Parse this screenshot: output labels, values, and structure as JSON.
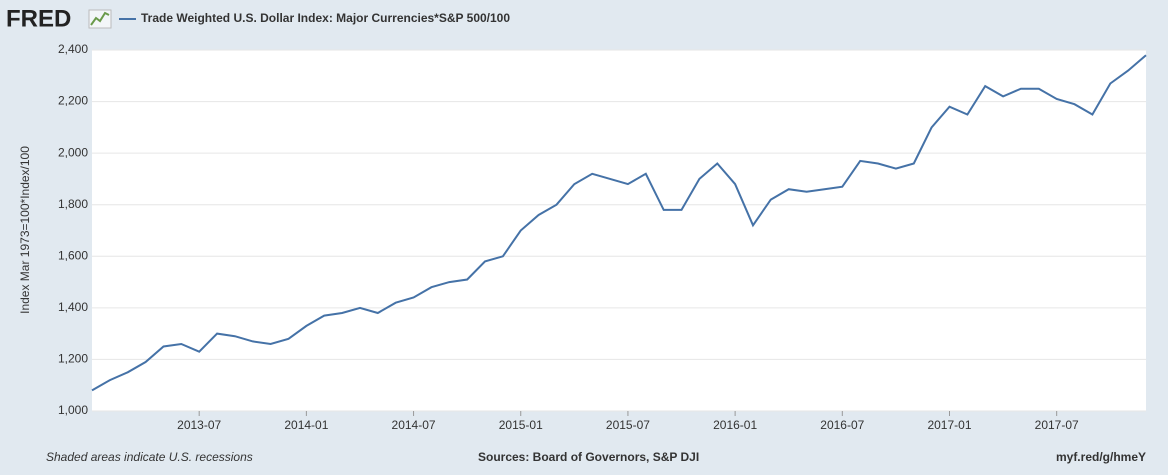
{
  "chart_data": {
    "type": "line",
    "logo": "FRED",
    "ylabel": "Index Mar 1973=100*Index/100",
    "note": "Shaded areas indicate U.S. recessions",
    "source": "Sources: Board of Governors, S&P DJI",
    "link": "myf.red/g/hmeY",
    "grid": true,
    "x": [
      "2013-01",
      "2013-02",
      "2013-03",
      "2013-04",
      "2013-05",
      "2013-06",
      "2013-07",
      "2013-08",
      "2013-09",
      "2013-10",
      "2013-11",
      "2013-12",
      "2014-01",
      "2014-02",
      "2014-03",
      "2014-04",
      "2014-05",
      "2014-06",
      "2014-07",
      "2014-08",
      "2014-09",
      "2014-10",
      "2014-11",
      "2014-12",
      "2015-01",
      "2015-02",
      "2015-03",
      "2015-04",
      "2015-05",
      "2015-06",
      "2015-07",
      "2015-08",
      "2015-09",
      "2015-10",
      "2015-11",
      "2015-12",
      "2016-01",
      "2016-02",
      "2016-03",
      "2016-04",
      "2016-05",
      "2016-06",
      "2016-07",
      "2016-08",
      "2016-09",
      "2016-10",
      "2016-11",
      "2016-12",
      "2017-01",
      "2017-02",
      "2017-03",
      "2017-04",
      "2017-05",
      "2017-06",
      "2017-07",
      "2017-08",
      "2017-09",
      "2017-10",
      "2017-11",
      "2017-12"
    ],
    "series": [
      {
        "name": "Trade Weighted U.S. Dollar Index: Major Currencies*S&P 500/100",
        "color": "#4572a7",
        "values": [
          1080,
          1120,
          1150,
          1190,
          1250,
          1260,
          1230,
          1300,
          1290,
          1270,
          1260,
          1280,
          1330,
          1370,
          1380,
          1400,
          1380,
          1420,
          1440,
          1480,
          1500,
          1510,
          1580,
          1600,
          1700,
          1760,
          1800,
          1880,
          1920,
          1900,
          1880,
          1920,
          1780,
          1780,
          1900,
          1960,
          1880,
          1720,
          1820,
          1860,
          1850,
          1860,
          1870,
          1970,
          1960,
          1940,
          1960,
          2100,
          2180,
          2150,
          2260,
          2220,
          2250,
          2250,
          2210,
          2190,
          2150,
          2270,
          2320,
          2380
        ]
      }
    ],
    "xlim": [
      "2013-01",
      "2017-12"
    ],
    "xticks": [
      "2013-07",
      "2014-01",
      "2014-07",
      "2015-01",
      "2015-07",
      "2016-01",
      "2016-07",
      "2017-01",
      "2017-07"
    ],
    "ylim": [
      1000,
      2400
    ],
    "yticks": [
      {
        "value": 1000,
        "label": "1,000"
      },
      {
        "value": 1200,
        "label": "1,200"
      },
      {
        "value": 1400,
        "label": "1,400"
      },
      {
        "value": 1600,
        "label": "1,600"
      },
      {
        "value": 1800,
        "label": "1,800"
      },
      {
        "value": 2000,
        "label": "2,000"
      },
      {
        "value": 2200,
        "label": "2,200"
      },
      {
        "value": 2400,
        "label": "2,400"
      }
    ]
  }
}
